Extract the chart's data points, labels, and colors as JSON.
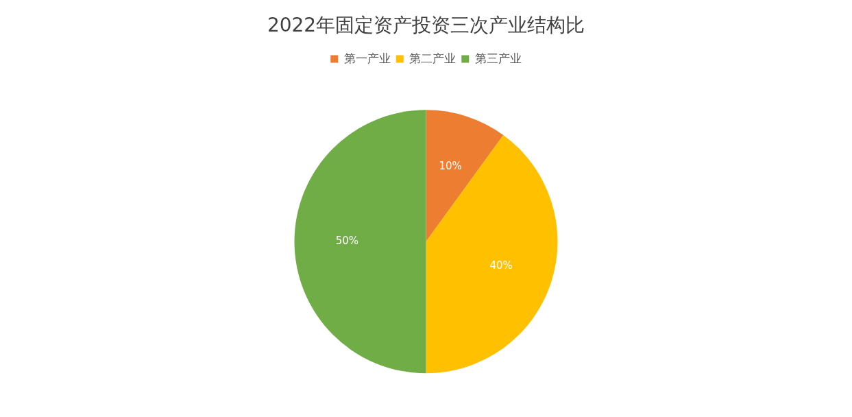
{
  "chart_data": {
    "type": "pie",
    "title": "2022年固定资产投资三次产业结构比",
    "categories": [
      "第一产业",
      "第二产业",
      "第三产业"
    ],
    "values": [
      10,
      40,
      50
    ],
    "colors": [
      "#ed7d31",
      "#ffc000",
      "#70ad47"
    ],
    "value_labels": [
      "10%",
      "40%",
      "50%"
    ],
    "legend": "top"
  }
}
